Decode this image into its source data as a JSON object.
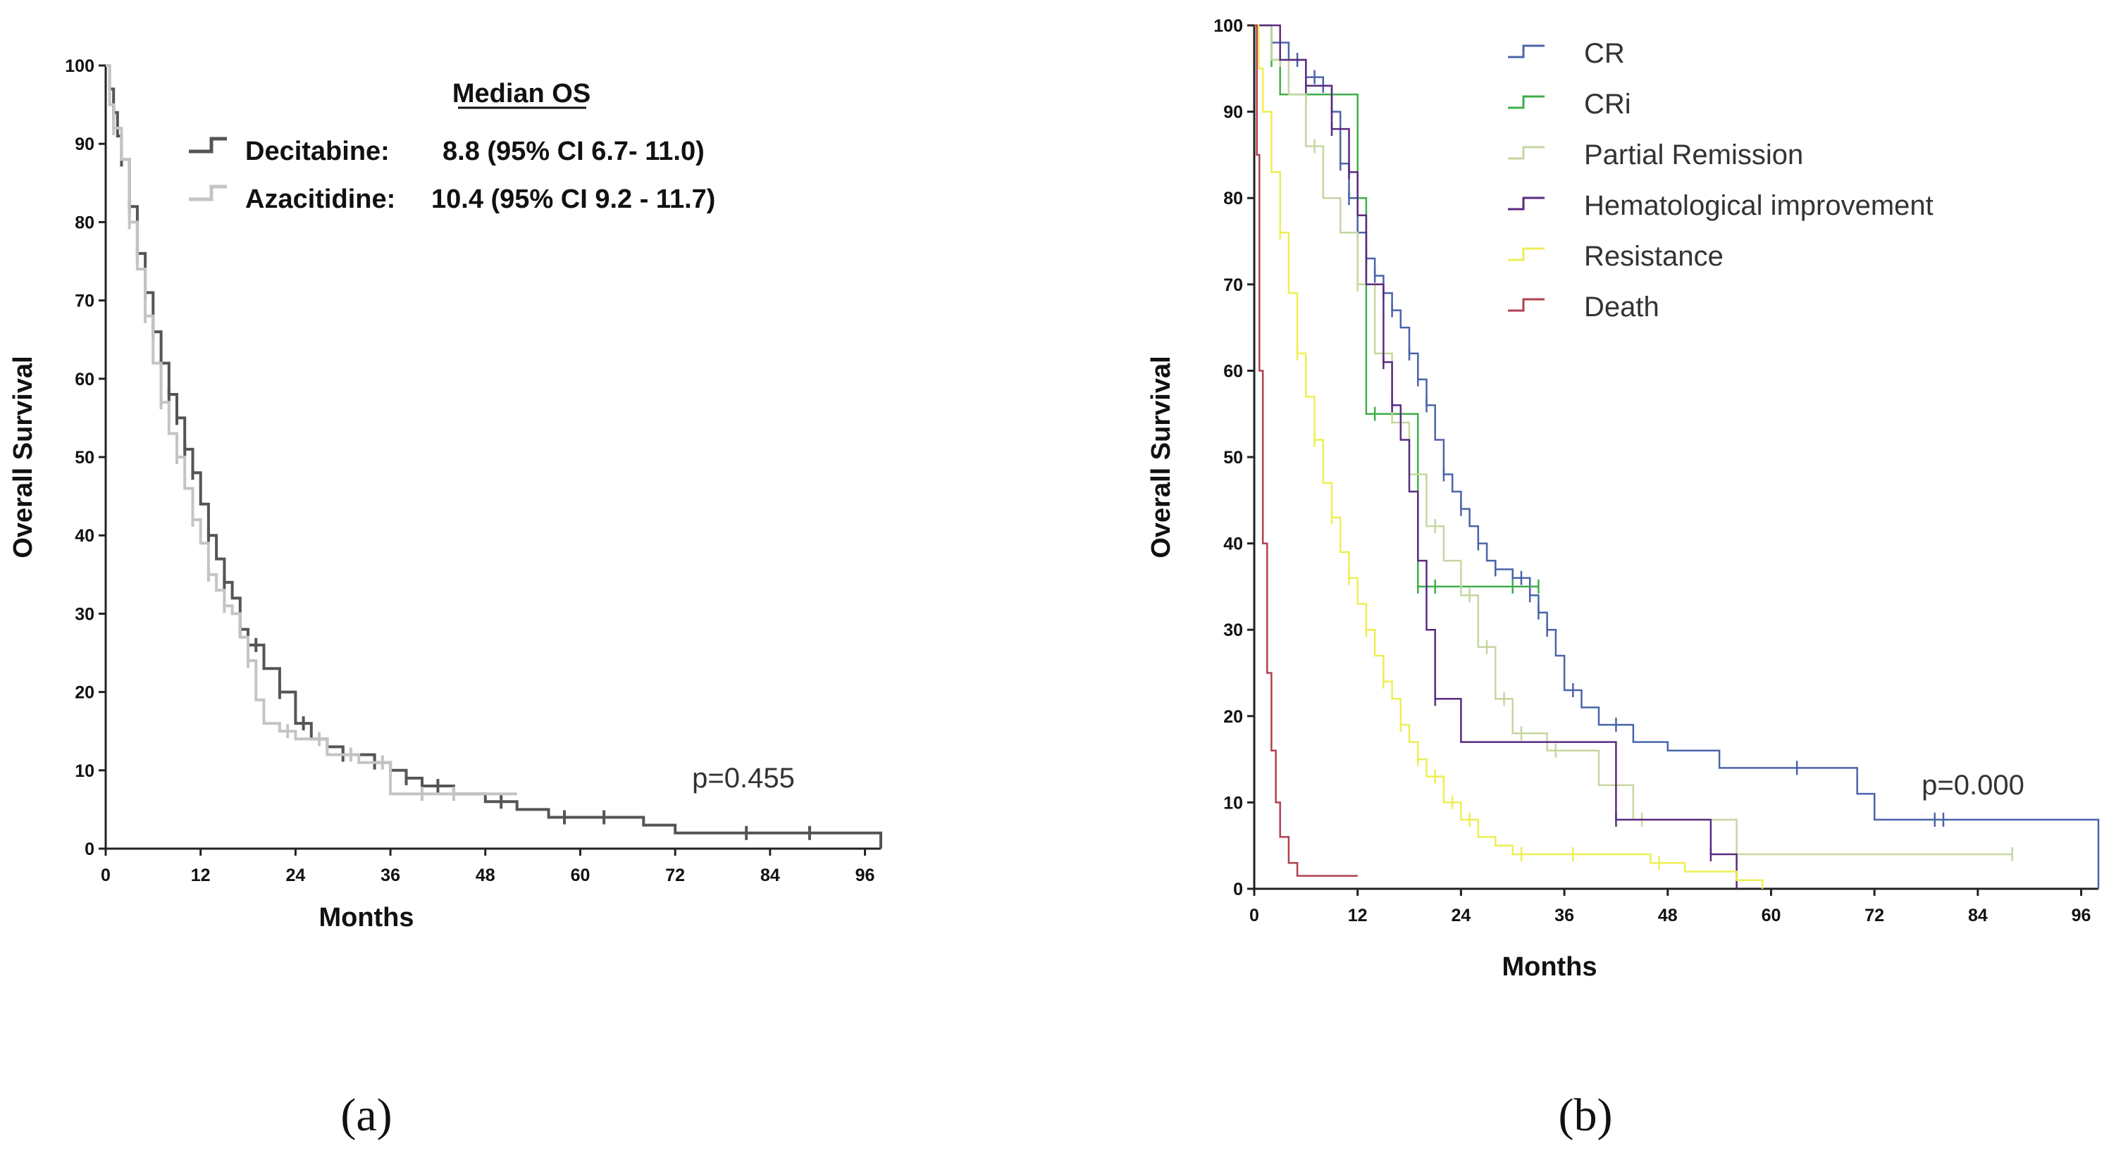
{
  "chart_data": [
    {
      "type": "line",
      "panel_label": "(a)",
      "xlabel": "Months",
      "ylabel": "Overall Survival",
      "xlim": [
        0,
        98
      ],
      "ylim": [
        0,
        100
      ],
      "xticks": [
        0,
        12,
        24,
        36,
        48,
        60,
        72,
        84,
        96
      ],
      "yticks": [
        0,
        10,
        20,
        30,
        40,
        50,
        60,
        70,
        80,
        90,
        100
      ],
      "legend_title": "Median OS",
      "annotation": "p=0.455",
      "series": [
        {
          "name": "Decitabine:",
          "stat": "8.8 (95% CI 6.7- 11.0)",
          "color": "#555555",
          "x": [
            0,
            0.5,
            1,
            1.5,
            2,
            3,
            4,
            5,
            6,
            7,
            8,
            9,
            10,
            11,
            12,
            13,
            14,
            15,
            16,
            17,
            18,
            20,
            22,
            24,
            26,
            28,
            30,
            32,
            34,
            36,
            38,
            40,
            44,
            48,
            52,
            56,
            60,
            64,
            68,
            72,
            80,
            88,
            96,
            98
          ],
          "y": [
            100,
            97,
            94,
            91,
            88,
            82,
            76,
            71,
            66,
            62,
            58,
            55,
            51,
            48,
            44,
            40,
            37,
            34,
            32,
            28,
            26,
            23,
            20,
            16,
            14,
            13,
            12,
            12,
            11,
            10,
            9,
            8,
            7,
            6,
            5,
            4,
            4,
            4,
            3,
            2,
            2,
            2,
            2,
            0
          ],
          "censor_x": [
            1,
            2,
            3,
            4,
            5,
            6,
            7,
            8,
            9,
            10,
            11,
            13,
            15,
            17,
            19,
            22,
            25,
            30,
            34,
            38,
            42,
            50,
            58,
            63,
            81,
            89
          ]
        },
        {
          "name": "Azacitidine:",
          "stat": "10.4 (95% CI 9.2 - 11.7)",
          "color": "#c4c4c4",
          "x": [
            0,
            0.5,
            1,
            2,
            3,
            4,
            5,
            6,
            7,
            8,
            9,
            10,
            11,
            12,
            13,
            14,
            15,
            16,
            17,
            18,
            19,
            20,
            22,
            24,
            28,
            32,
            36,
            40,
            44,
            48,
            52
          ],
          "y": [
            100,
            95,
            92,
            88,
            80,
            74,
            68,
            62,
            57,
            53,
            50,
            46,
            42,
            39,
            35,
            33,
            31,
            30,
            27,
            24,
            19,
            16,
            15,
            14,
            12,
            11,
            7,
            7,
            7,
            7,
            7
          ],
          "censor_x": [
            1,
            3,
            5,
            7,
            9,
            11,
            13,
            15,
            18,
            23,
            27,
            31,
            35,
            40,
            44
          ]
        }
      ]
    },
    {
      "type": "line",
      "panel_label": "(b)",
      "xlabel": "Months",
      "ylabel": "Overall Survival",
      "xlim": [
        0,
        98
      ],
      "ylim": [
        0,
        100
      ],
      "xticks": [
        0,
        12,
        24,
        36,
        48,
        60,
        72,
        84,
        96
      ],
      "yticks": [
        0,
        10,
        20,
        30,
        40,
        50,
        60,
        70,
        80,
        90,
        100
      ],
      "annotation": "p=0.000",
      "series": [
        {
          "name": "CR",
          "color": "#4a64aa",
          "x": [
            0,
            2,
            4,
            6,
            8,
            9,
            10,
            11,
            12,
            13,
            14,
            15,
            16,
            17,
            18,
            19,
            20,
            21,
            22,
            23,
            24,
            25,
            26,
            27,
            28,
            30,
            32,
            33,
            34,
            35,
            36,
            38,
            40,
            44,
            48,
            54,
            60,
            66,
            70,
            72,
            80,
            96,
            98
          ],
          "y": [
            100,
            98,
            96,
            94,
            93,
            90,
            84,
            80,
            76,
            73,
            71,
            69,
            67,
            65,
            62,
            59,
            56,
            52,
            48,
            46,
            44,
            42,
            40,
            38,
            37,
            36,
            34,
            32,
            30,
            27,
            23,
            21,
            19,
            17,
            16,
            14,
            14,
            14,
            11,
            8,
            8,
            8,
            0
          ],
          "censor_x": [
            2,
            5,
            7,
            8,
            9,
            10,
            11,
            12,
            13,
            14,
            15,
            16,
            18,
            19,
            20,
            22,
            24,
            26,
            28,
            30,
            31,
            32,
            33,
            34,
            37,
            42,
            63,
            79,
            80
          ]
        },
        {
          "name": "CRi",
          "color": "#3fae4a",
          "x": [
            0,
            1,
            2,
            3,
            4,
            7,
            8,
            12,
            13,
            18,
            19,
            30,
            33
          ],
          "y": [
            100,
            100,
            96,
            92,
            92,
            92,
            92,
            80,
            55,
            55,
            35,
            35,
            35
          ],
          "censor_x": [
            2,
            6,
            14,
            19,
            21,
            30,
            33
          ]
        },
        {
          "name": "Partial Remission",
          "color": "#c6d6a0",
          "x": [
            0,
            2,
            4,
            6,
            8,
            10,
            12,
            14,
            16,
            18,
            20,
            22,
            24,
            26,
            28,
            30,
            34,
            36,
            40,
            44,
            56,
            70,
            84,
            88
          ],
          "y": [
            100,
            96,
            92,
            86,
            80,
            76,
            70,
            62,
            54,
            48,
            42,
            38,
            34,
            28,
            22,
            18,
            16,
            16,
            12,
            8,
            4,
            4,
            4,
            4
          ],
          "censor_x": [
            3,
            7,
            12,
            17,
            21,
            25,
            27,
            29,
            31,
            35,
            45,
            88
          ]
        },
        {
          "name": "Hematological improvement",
          "color": "#5a2a80",
          "x": [
            0,
            3,
            6,
            9,
            11,
            12,
            13,
            15,
            16,
            17,
            18,
            19,
            20,
            21,
            24,
            30,
            36,
            40,
            42,
            48,
            53,
            56
          ],
          "y": [
            100,
            96,
            93,
            88,
            83,
            78,
            70,
            61,
            56,
            52,
            46,
            38,
            30,
            22,
            17,
            17,
            17,
            17,
            8,
            8,
            4,
            0
          ],
          "censor_x": [
            6,
            9,
            11,
            15,
            16,
            21,
            42,
            53
          ]
        },
        {
          "name": "Resistance",
          "color": "#eeee55",
          "x": [
            0,
            0.5,
            1,
            2,
            3,
            4,
            5,
            6,
            7,
            8,
            9,
            10,
            11,
            12,
            13,
            14,
            15,
            16,
            17,
            18,
            19,
            20,
            22,
            24,
            26,
            28,
            30,
            34,
            40,
            46,
            50,
            56,
            59
          ],
          "y": [
            100,
            95,
            90,
            83,
            76,
            69,
            62,
            57,
            52,
            47,
            43,
            39,
            36,
            33,
            30,
            27,
            24,
            22,
            19,
            17,
            15,
            13,
            10,
            8,
            6,
            5,
            4,
            4,
            4,
            3,
            2,
            1,
            0
          ],
          "censor_x": [
            3,
            5,
            7,
            9,
            11,
            13,
            15,
            17,
            19,
            21,
            23,
            25,
            31,
            37,
            47
          ]
        },
        {
          "name": "Death",
          "color": "#b04050",
          "x": [
            0,
            0.3,
            0.6,
            1,
            1.5,
            2,
            2.5,
            3,
            4,
            5,
            8,
            12
          ],
          "y": [
            100,
            85,
            60,
            40,
            25,
            16,
            10,
            6,
            3,
            1.5,
            1.5,
            1.5
          ],
          "censor_x": []
        }
      ]
    }
  ]
}
